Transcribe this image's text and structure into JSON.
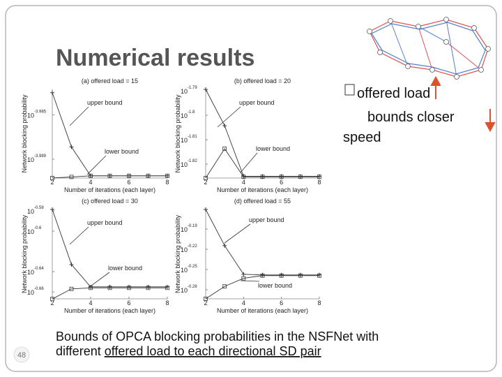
{
  "header": {
    "title": "Numerical results"
  },
  "bullets": [
    "offered load",
    "bounds closer",
    "speed"
  ],
  "caption": {
    "line1": "Bounds of OPCA blocking probabilities in the NSFNet with",
    "line2_plain": "different ",
    "line2_underlined": "offered load to each directional SD pair"
  },
  "page_number": "48",
  "plots": [
    {
      "title": "(a) offered load = 15",
      "xlabel": "Number of iterations (each layer)",
      "ylabel": "Network blocking probability",
      "xlim": [
        2,
        8
      ],
      "xticks": [
        2,
        4,
        6,
        8
      ],
      "ylim": [
        -3.9907,
        -3.9827
      ],
      "yticks": [
        {
          "base": "10",
          "exponent": "-3.985"
        },
        {
          "base": "10",
          "exponent": "-3.989"
        }
      ],
      "x": [
        2,
        3,
        4,
        5,
        6,
        7,
        8
      ],
      "series": [
        {
          "name": "upper bound",
          "values": [
            -3.983,
            -3.9879,
            -3.9905,
            -3.9905,
            -3.9905,
            -3.9905,
            -3.9905
          ]
        },
        {
          "name": "lower bound",
          "values": [
            -3.9907,
            -3.9906,
            -3.9905,
            -3.9905,
            -3.9905,
            -3.9905,
            -3.9905
          ]
        }
      ]
    },
    {
      "title": "(b) offered load = 20",
      "xlabel": "Number of iterations (each layer)",
      "ylabel": "Network blocking probability",
      "xlim": [
        2,
        8
      ],
      "xticks": [
        2,
        4,
        6,
        8
      ],
      "ylim": [
        -1.8257,
        -1.7894
      ],
      "yticks": [
        {
          "base": "10",
          "exponent": "-1.79"
        },
        {
          "base": "10",
          "exponent": "-1.8"
        },
        {
          "base": "10",
          "exponent": "-1.81"
        },
        {
          "base": "10",
          "exponent": "-1.82"
        }
      ],
      "x": [
        2,
        3,
        4,
        5,
        6,
        7,
        8
      ],
      "series": [
        {
          "name": "upper bound",
          "values": [
            -1.7894,
            -1.8043,
            -1.825,
            -1.825,
            -1.825,
            -1.825,
            -1.825
          ]
        },
        {
          "name": "lower bound",
          "values": [
            -1.8257,
            -1.8137,
            -1.8252,
            -1.8252,
            -1.8252,
            -1.8252,
            -1.8252
          ]
        }
      ]
    },
    {
      "title": "(c) offered load = 30",
      "xlabel": "Number of iterations (each layer)",
      "ylabel": "Network blocking probability",
      "xlim": [
        2,
        8
      ],
      "xticks": [
        2,
        4,
        6,
        8
      ],
      "ylim": [
        -0.6668,
        -0.5786
      ],
      "yticks": [
        {
          "base": "10",
          "exponent": "-0.58"
        },
        {
          "base": "10",
          "exponent": "-0.6"
        },
        {
          "base": "10",
          "exponent": "-0.64"
        },
        {
          "base": "10",
          "exponent": "-0.66"
        }
      ],
      "x": [
        2,
        3,
        4,
        5,
        6,
        7,
        8
      ],
      "series": [
        {
          "name": "upper bound",
          "values": [
            -0.5786,
            -0.633,
            -0.655,
            -0.655,
            -0.655,
            -0.655,
            -0.655
          ]
        },
        {
          "name": "lower bound",
          "values": [
            -0.667,
            -0.657,
            -0.656,
            -0.656,
            -0.656,
            -0.656,
            -0.656
          ]
        }
      ]
    },
    {
      "title": "(d) offered load = 55",
      "xlabel": "Number of iterations (each layer)",
      "ylabel": "Network blocking probability",
      "xlim": [
        2,
        8
      ],
      "xticks": [
        2,
        4,
        6,
        8
      ],
      "ylim": [
        -0.2934,
        -0.161
      ],
      "yticks": [
        {
          "base": "10",
          "exponent": "-0.19"
        },
        {
          "base": "10",
          "exponent": "-0.22"
        },
        {
          "base": "10",
          "exponent": "-0.25"
        },
        {
          "base": "10",
          "exponent": "-0.28"
        }
      ],
      "x": [
        2,
        3,
        4,
        5,
        6,
        7,
        8
      ],
      "series": [
        {
          "name": "upper bound",
          "values": [
            -0.161,
            -0.2146,
            -0.257,
            -0.258,
            -0.258,
            -0.258,
            -0.258
          ]
        },
        {
          "name": "lower bound",
          "values": [
            -0.2934,
            -0.275,
            -0.263,
            -0.259,
            -0.259,
            -0.259,
            -0.259
          ]
        }
      ]
    }
  ]
}
